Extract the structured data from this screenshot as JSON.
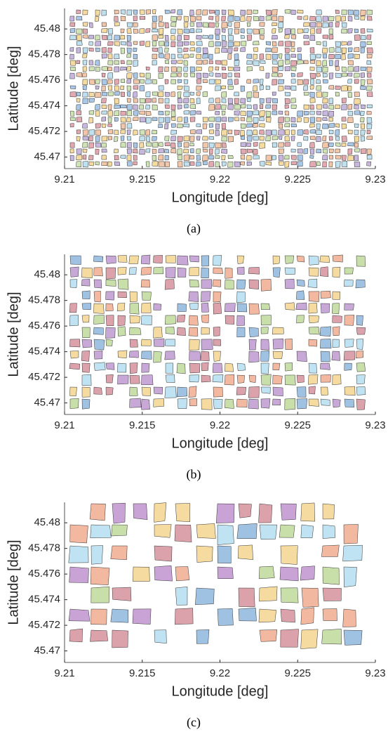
{
  "chart_data": [
    {
      "type": "map",
      "xlabel": "Longitude [deg]",
      "ylabel": "Latitude [deg]",
      "caption": "(a)",
      "xlim": [
        9.21,
        9.23
      ],
      "xticks": [
        9.21,
        9.215,
        9.22,
        9.225,
        9.23
      ],
      "ylim": [
        45.4691,
        45.4816
      ],
      "yticks": [
        45.47,
        45.472,
        45.474,
        45.476,
        45.478,
        45.48
      ],
      "palette": [
        "#f2c6a8",
        "#c7b6dd",
        "#bfe0ef",
        "#cfe3b5",
        "#f5dba0",
        "#e3a9b0",
        "#a9c7e6"
      ]
    },
    {
      "type": "map",
      "xlabel": "Longitude [deg]",
      "ylabel": "Latitude [deg]",
      "caption": "(b)",
      "xlim": [
        9.21,
        9.23
      ],
      "xticks": [
        9.21,
        9.215,
        9.22,
        9.225,
        9.23
      ],
      "ylim": [
        45.4691,
        45.4816
      ],
      "yticks": [
        45.47,
        45.472,
        45.474,
        45.476,
        45.478,
        45.48
      ],
      "palette": [
        "#f2b8a0",
        "#c7a8d6",
        "#bfe3f2",
        "#c8dfa9",
        "#f5dba0",
        "#dca2ab",
        "#9fc2e3"
      ]
    },
    {
      "type": "map",
      "xlabel": "Longitude [deg]",
      "ylabel": "Latitude [deg]",
      "caption": "(c)",
      "xlim": [
        9.21,
        9.23
      ],
      "xticks": [
        9.21,
        9.215,
        9.22,
        9.225,
        9.23
      ],
      "ylim": [
        45.4691,
        45.4816
      ],
      "yticks": [
        45.47,
        45.472,
        45.474,
        45.476,
        45.478,
        45.48
      ],
      "palette": [
        "#f2b8a0",
        "#c9a3d6",
        "#bfe3f2",
        "#c8dfa9",
        "#f5dba0",
        "#dca2ab",
        "#9fc2e3"
      ]
    }
  ]
}
